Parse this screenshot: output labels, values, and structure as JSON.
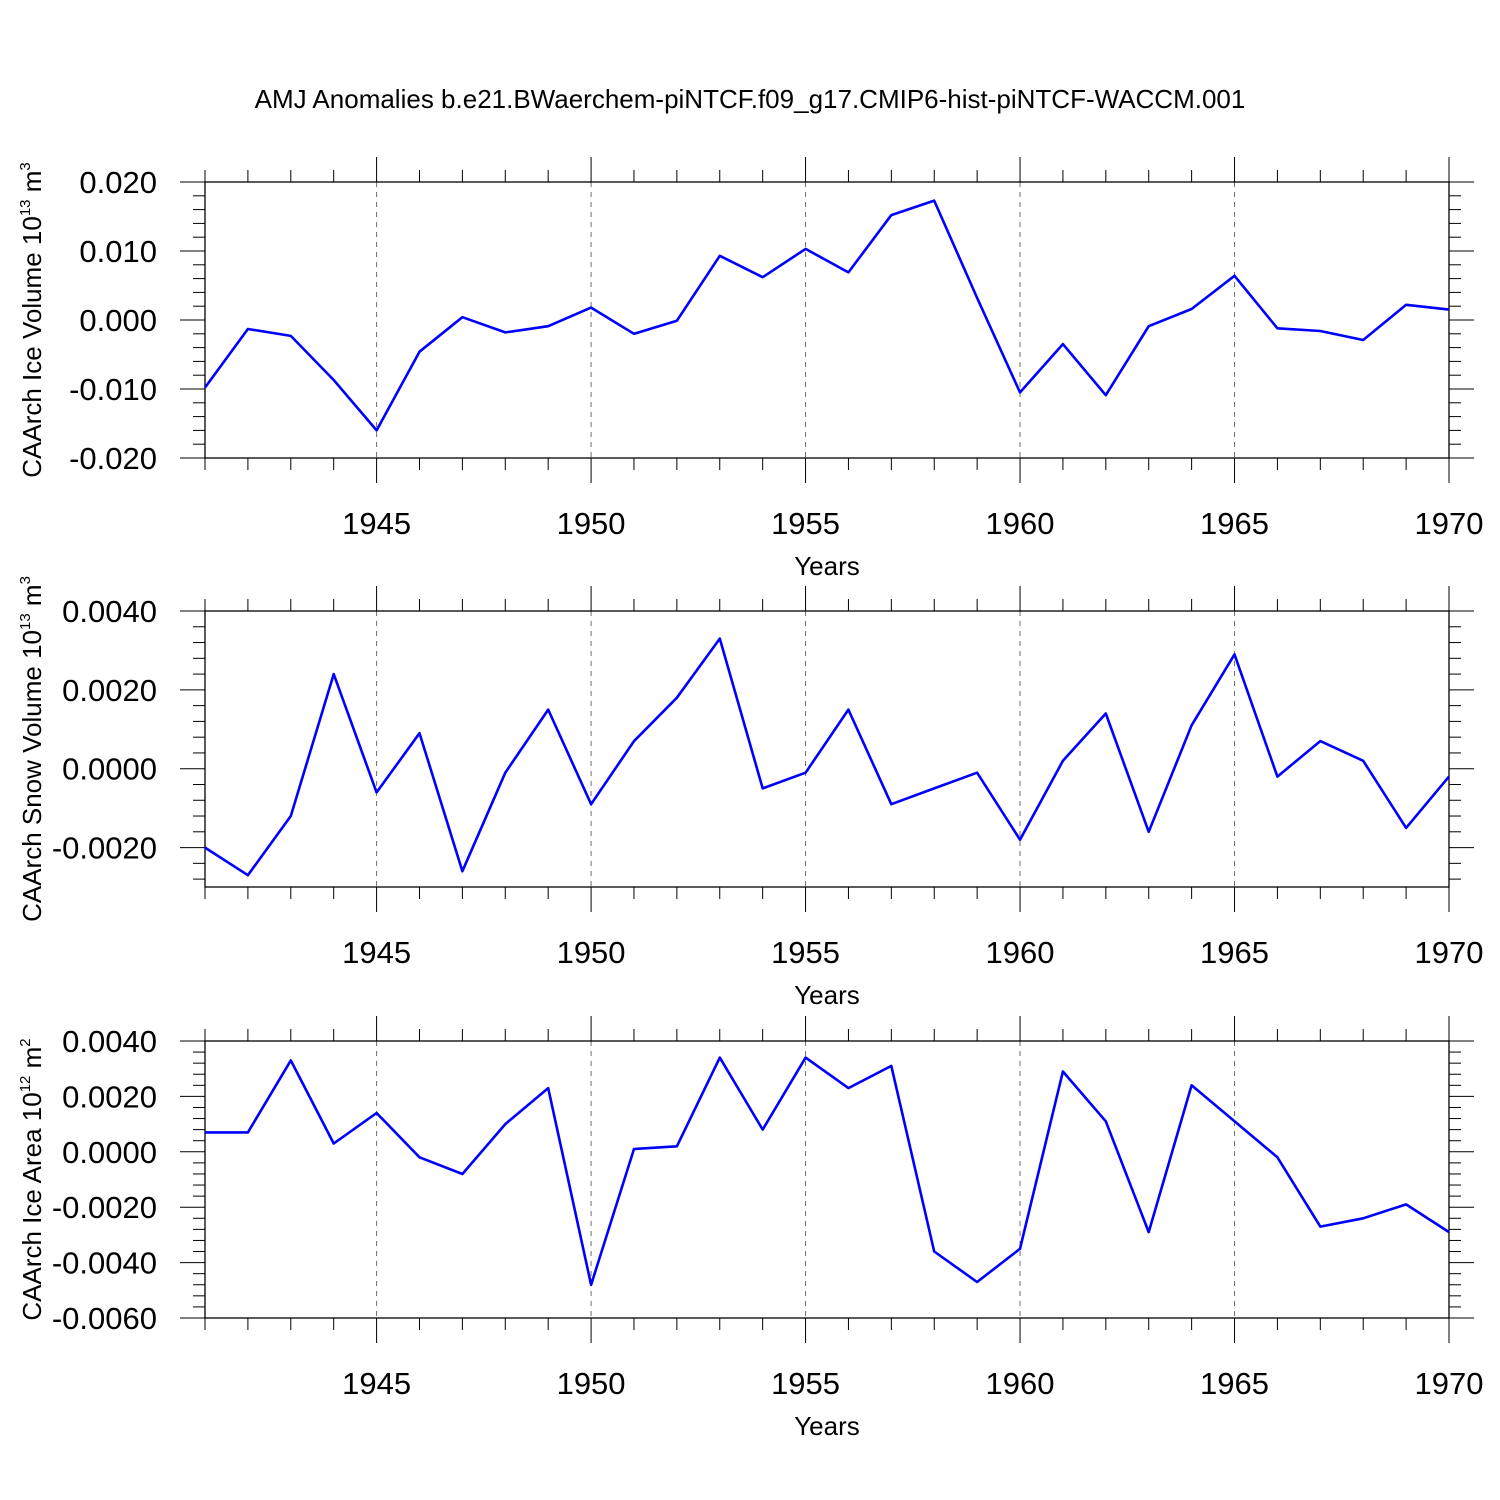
{
  "title": "AMJ Anomalies b.e21.BWaerchem-piNTCF.f09_g17.CMIP6-hist-piNTCF-WACCM.001",
  "colors": {
    "line": "#0000ff",
    "axis": "#000000",
    "grid": "#6e6e6e"
  },
  "chart_data": [
    {
      "type": "line",
      "xlabel": "Years",
      "ylabel": {
        "text": "CAArch Ice Volume 10",
        "exp": "13",
        "unit": " m",
        "unit_exp": "3"
      },
      "xlim": [
        1941,
        1970
      ],
      "ylim": [
        -0.02,
        0.02
      ],
      "xticks": [
        1945,
        1950,
        1955,
        1960,
        1965,
        1970
      ],
      "yticks": [
        -0.02,
        -0.01,
        0.0,
        0.01,
        0.02
      ],
      "ytick_labels": [
        "-0.020",
        "-0.010",
        "0.000",
        "0.010",
        "0.020"
      ],
      "grid": "vertical dashed at major x ticks",
      "x": [
        1941,
        1942,
        1943,
        1944,
        1945,
        1946,
        1947,
        1948,
        1949,
        1950,
        1951,
        1952,
        1953,
        1954,
        1955,
        1956,
        1957,
        1958,
        1959,
        1960,
        1961,
        1962,
        1963,
        1964,
        1965,
        1966,
        1967,
        1968,
        1969,
        1970
      ],
      "values": [
        -0.0098,
        -0.0013,
        -0.0023,
        -0.0087,
        -0.016,
        -0.0046,
        0.0004,
        -0.0018,
        -0.0009,
        0.0018,
        -0.002,
        -0.0001,
        0.0093,
        0.0062,
        0.0103,
        0.0069,
        0.0152,
        0.0173,
        0.0032,
        -0.0105,
        -0.0035,
        -0.0109,
        -0.0009,
        0.0016,
        0.0064,
        -0.0012,
        -0.0016,
        -0.0029,
        0.0022,
        0.0015
      ]
    },
    {
      "type": "line",
      "xlabel": "Years",
      "ylabel": {
        "text": "CAArch Snow Volume 10",
        "exp": "13",
        "unit": " m",
        "unit_exp": "3"
      },
      "xlim": [
        1941,
        1970
      ],
      "ylim": [
        -0.003,
        0.004
      ],
      "xticks": [
        1945,
        1950,
        1955,
        1960,
        1965,
        1970
      ],
      "yticks": [
        -0.002,
        0.0,
        0.002,
        0.004
      ],
      "ytick_labels": [
        "-0.0020",
        "0.0000",
        "0.0020",
        "0.0040"
      ],
      "grid": "vertical dashed at major x ticks",
      "x": [
        1941,
        1942,
        1943,
        1944,
        1945,
        1946,
        1947,
        1948,
        1949,
        1950,
        1951,
        1952,
        1953,
        1954,
        1955,
        1956,
        1957,
        1958,
        1959,
        1960,
        1961,
        1962,
        1963,
        1964,
        1965,
        1966,
        1967,
        1968,
        1969,
        1970
      ],
      "values": [
        -0.002,
        -0.0027,
        -0.0012,
        0.0024,
        -0.0006,
        0.0009,
        -0.0026,
        -0.0001,
        0.0015,
        -0.0009,
        0.0007,
        0.0018,
        0.0033,
        -0.0005,
        -0.0001,
        0.0015,
        -0.0009,
        -0.0005,
        -0.0001,
        -0.0018,
        0.0002,
        0.0014,
        -0.0016,
        0.0011,
        0.0029,
        -0.0002,
        0.0007,
        0.0002,
        -0.0015,
        -0.0002
      ]
    },
    {
      "type": "line",
      "xlabel": "Years",
      "ylabel": {
        "text": "CAArch Ice Area 10",
        "exp": "12",
        "unit": " m",
        "unit_exp": "2"
      },
      "xlim": [
        1941,
        1970
      ],
      "ylim": [
        -0.006,
        0.004
      ],
      "xticks": [
        1945,
        1950,
        1955,
        1960,
        1965,
        1970
      ],
      "yticks": [
        -0.006,
        -0.004,
        -0.002,
        0.0,
        0.002,
        0.004
      ],
      "ytick_labels": [
        "-0.0060",
        "-0.0040",
        "-0.0020",
        "0.0000",
        "0.0020",
        "0.0040"
      ],
      "grid": "vertical dashed at major x ticks",
      "x": [
        1941,
        1942,
        1943,
        1944,
        1945,
        1946,
        1947,
        1948,
        1949,
        1950,
        1951,
        1952,
        1953,
        1954,
        1955,
        1956,
        1957,
        1958,
        1959,
        1960,
        1961,
        1962,
        1963,
        1964,
        1965,
        1966,
        1967,
        1968,
        1969,
        1970
      ],
      "values": [
        0.0007,
        0.0007,
        0.0033,
        0.0003,
        0.0014,
        -0.0002,
        -0.0008,
        0.001,
        0.0023,
        -0.0048,
        0.0001,
        0.0002,
        0.0034,
        0.0008,
        0.0034,
        0.0023,
        0.0031,
        -0.0036,
        -0.0047,
        -0.0035,
        0.0029,
        0.0011,
        -0.0029,
        0.0024,
        0.0011,
        -0.0002,
        -0.0027,
        -0.0024,
        -0.0019,
        -0.0029
      ]
    }
  ]
}
